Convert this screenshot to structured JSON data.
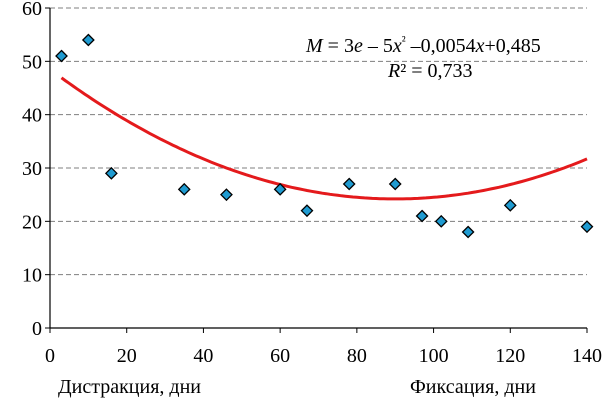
{
  "chart_data": {
    "type": "scatter",
    "x": [
      3,
      10,
      16,
      35,
      46,
      60,
      67,
      78,
      90,
      97,
      102,
      109,
      120,
      140
    ],
    "y": [
      51,
      54,
      29,
      26,
      25,
      26,
      22,
      27,
      27,
      21,
      20,
      18,
      23,
      19
    ],
    "xlim": [
      0,
      140
    ],
    "ylim": [
      0,
      60
    ],
    "x_ticks": [
      "0",
      "20",
      "40",
      "60",
      "80",
      "100",
      "120",
      "140"
    ],
    "y_ticks": [
      "0",
      "10",
      "20",
      "30",
      "40",
      "50",
      "60"
    ],
    "trendline": {
      "type": "polynomial",
      "a": 3e-05,
      "b": -0.0054,
      "c": 0.485,
      "equation_parts": [
        "M",
        " = 3",
        "e",
        " – 5",
        "x",
        "²",
        " –0,0054",
        "x",
        "+0,485"
      ],
      "r2_parts": [
        "R",
        "² = 0,733"
      ],
      "color": "#e41a1c"
    },
    "grid": true,
    "marker_color": "#1f9bd1",
    "x_phase_labels": [
      "Дистракция, дни",
      "Фиксация, дни"
    ]
  }
}
